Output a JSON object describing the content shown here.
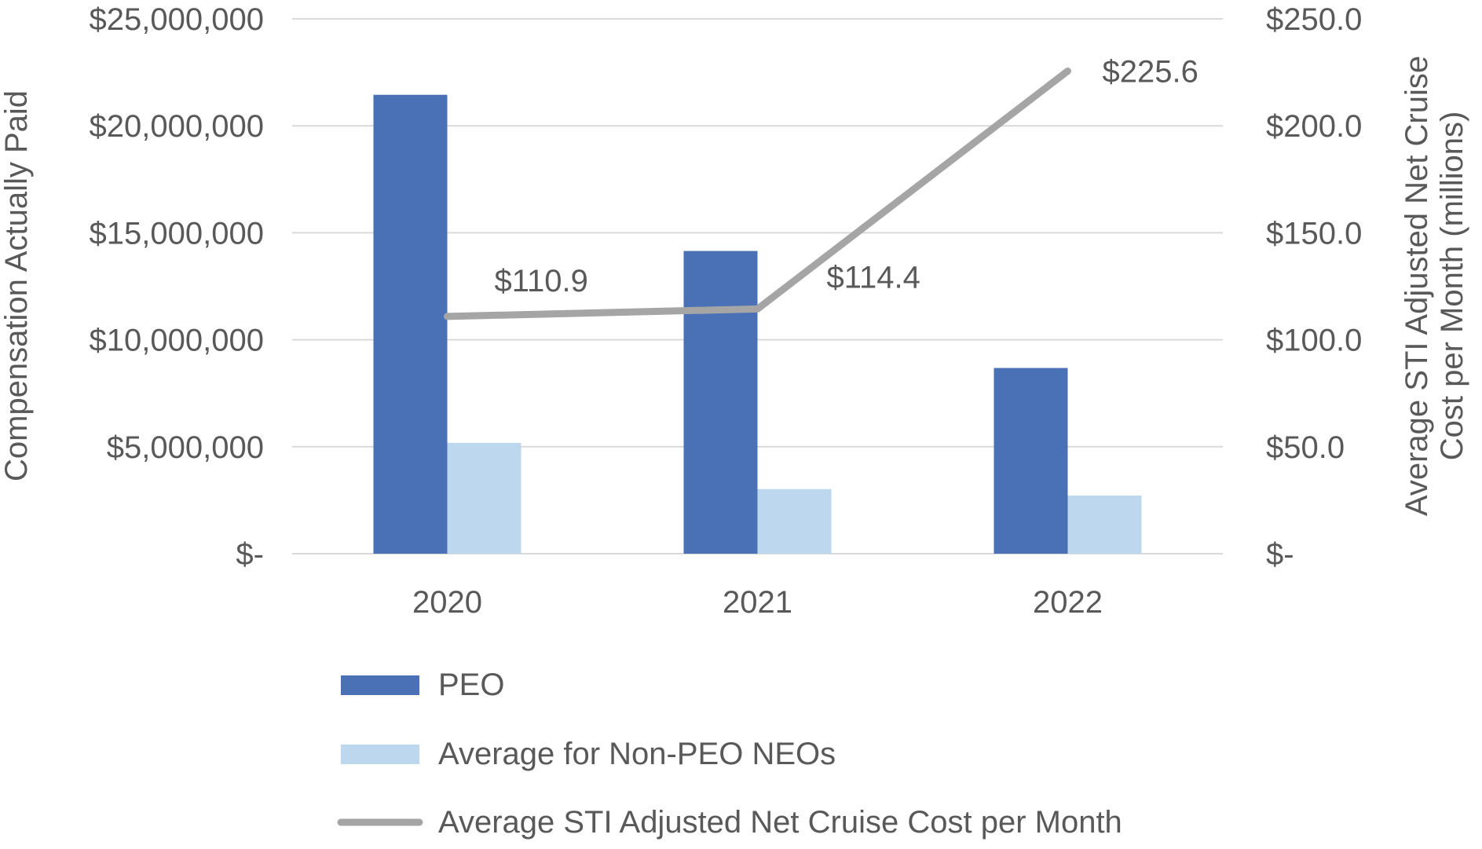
{
  "chart_data": {
    "type": "bar",
    "title": "",
    "categories": [
      "2020",
      "2021",
      "2022"
    ],
    "y_left": {
      "label": "Compensation Actually Paid",
      "range": [
        0,
        25000000
      ],
      "ticks": [
        0,
        5000000,
        10000000,
        15000000,
        20000000,
        25000000
      ],
      "tick_labels": [
        "$-",
        "$5,000,000",
        "$10,000,000",
        "$15,000,000",
        "$20,000,000",
        "$25,000,000"
      ]
    },
    "y_right": {
      "label_line1": "Average STI Adjusted Net Cruise",
      "label_line2": "Cost per Month (millions)",
      "range": [
        0,
        250
      ],
      "ticks": [
        0,
        50,
        100,
        150,
        200,
        250
      ],
      "tick_labels": [
        "$-",
        "$50.0",
        "$100.0",
        "$150.0",
        "$200.0",
        "$250.0"
      ]
    },
    "series": [
      {
        "name": "PEO",
        "type": "bar",
        "axis": "left",
        "color": "#4a70b6",
        "values": [
          21450000,
          14150000,
          8680000
        ]
      },
      {
        "name": "Average for Non-PEO NEOs",
        "type": "bar",
        "axis": "left",
        "color": "#bdd7ee",
        "values": [
          5180000,
          3020000,
          2720000
        ]
      },
      {
        "name": "Average STI Adjusted Net Cruise Cost per Month",
        "type": "line",
        "axis": "right",
        "color": "#a5a5a5",
        "values": [
          110.9,
          114.4,
          225.6
        ],
        "data_labels": [
          "$110.9",
          "$114.4",
          "$225.6"
        ]
      }
    ],
    "legend": {
      "position": "bottom",
      "items": [
        "PEO",
        "Average for Non-PEO NEOs",
        "Average STI Adjusted Net Cruise Cost per Month"
      ]
    },
    "grid": true,
    "gridline_color": "#d9d9d9",
    "text_color": "#595959"
  }
}
